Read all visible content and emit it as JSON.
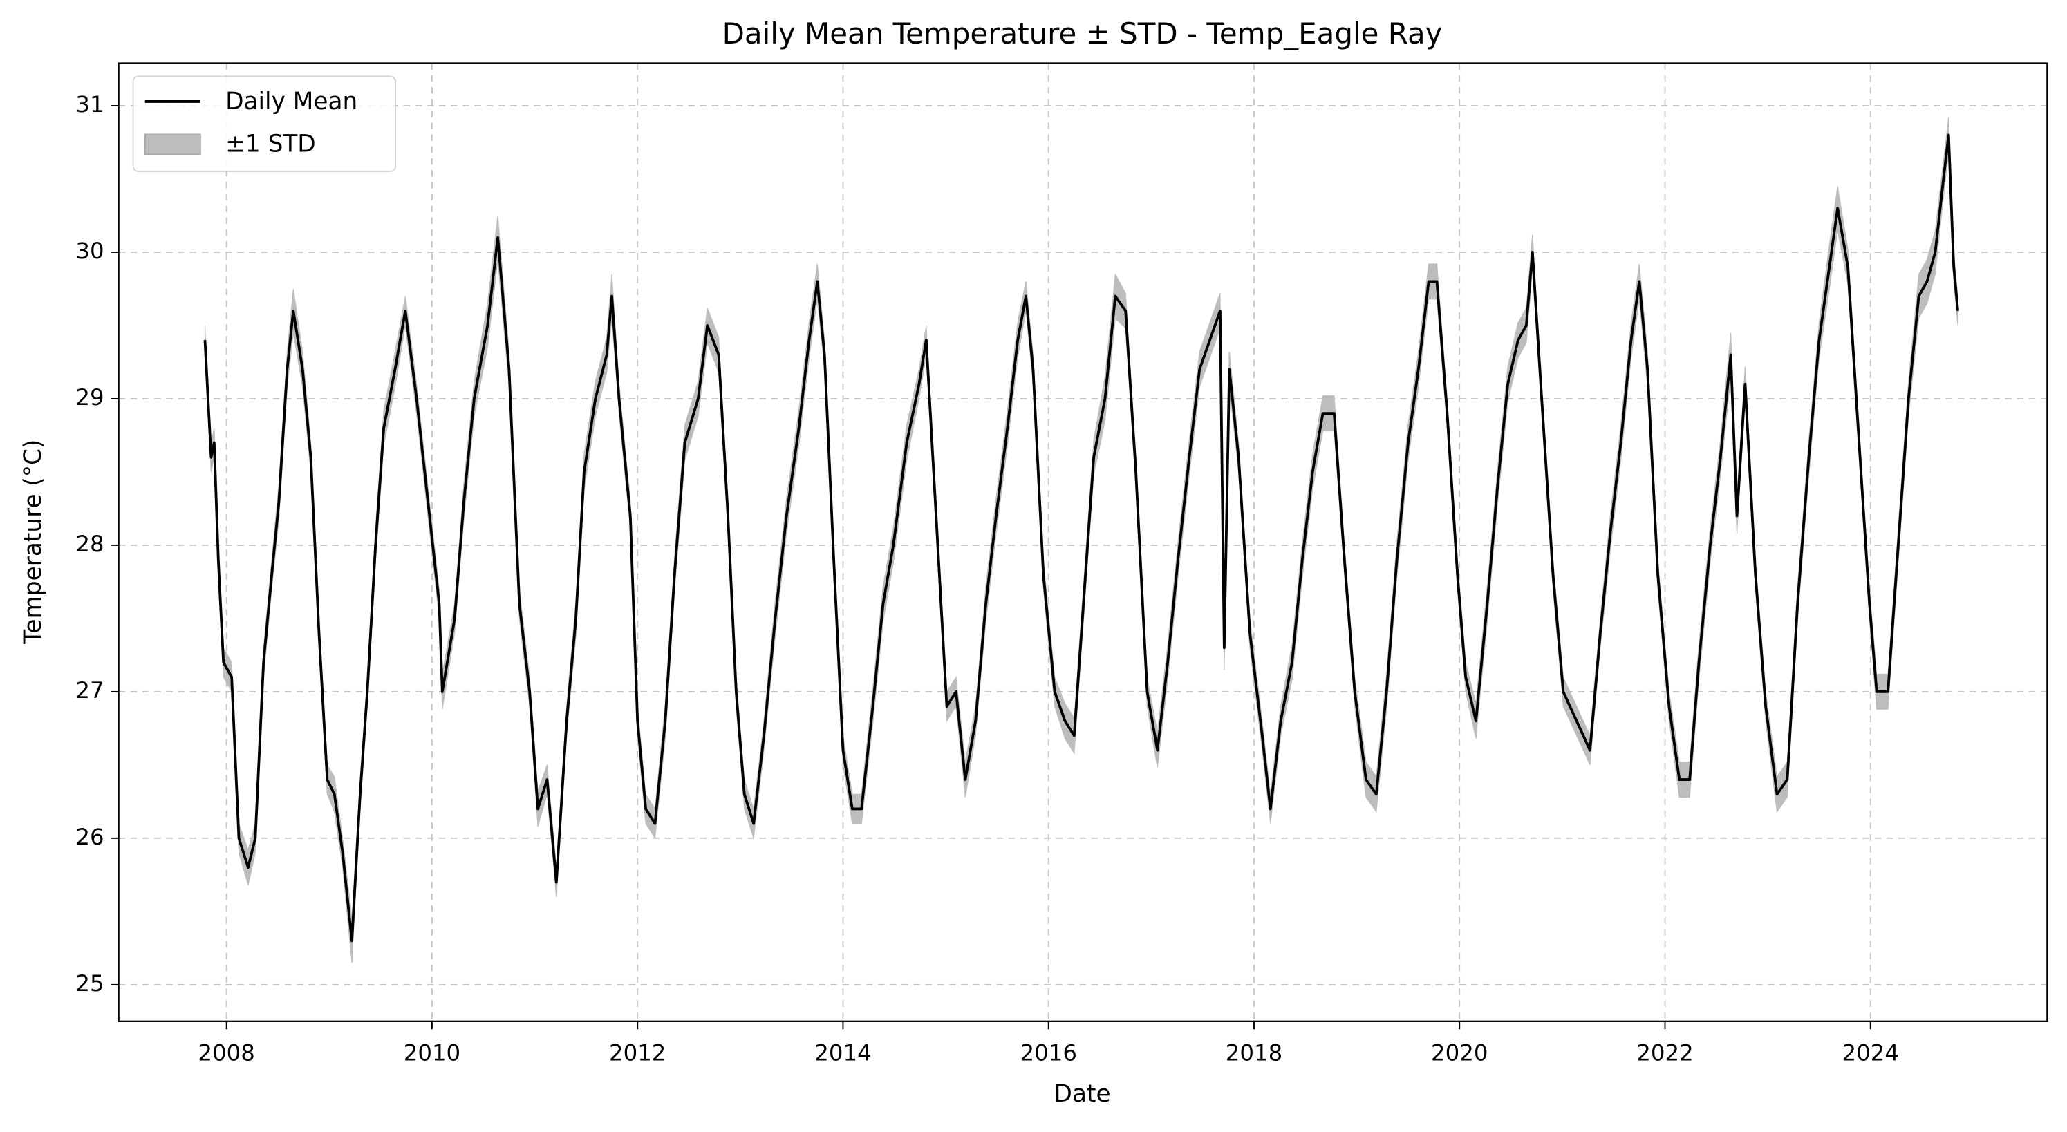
{
  "chart_data": {
    "type": "line",
    "title": "Daily Mean Temperature ± STD - Temp_Eagle Ray",
    "x_label": "Date",
    "y_label": "Temperature (°C)",
    "x": [
      2007.79,
      2007.85,
      2007.88,
      2007.92,
      2007.97,
      2008.05,
      2008.12,
      2008.21,
      2008.28,
      2008.36,
      2008.44,
      2008.51,
      2008.59,
      2008.65,
      2008.74,
      2008.82,
      2008.9,
      2008.98,
      2009.05,
      2009.13,
      2009.22,
      2009.3,
      2009.37,
      2009.45,
      2009.53,
      2009.64,
      2009.74,
      2009.85,
      2010.07,
      2010.1,
      2010.22,
      2010.31,
      2010.41,
      2010.54,
      2010.64,
      2010.75,
      2010.85,
      2010.95,
      2011.03,
      2011.12,
      2011.21,
      2011.31,
      2011.4,
      2011.48,
      2011.59,
      2011.7,
      2011.75,
      2011.82,
      2011.93,
      2012.0,
      2012.08,
      2012.17,
      2012.27,
      2012.36,
      2012.46,
      2012.59,
      2012.68,
      2012.79,
      2012.88,
      2012.96,
      2013.04,
      2013.13,
      2013.23,
      2013.34,
      2013.45,
      2013.57,
      2013.67,
      2013.75,
      2013.82,
      2013.91,
      2014.0,
      2014.09,
      2014.18,
      2014.29,
      2014.39,
      2014.49,
      2014.62,
      2014.74,
      2014.81,
      2014.93,
      2015.01,
      2015.1,
      2015.19,
      2015.29,
      2015.39,
      2015.49,
      2015.6,
      2015.7,
      2015.78,
      2015.85,
      2015.95,
      2016.06,
      2016.16,
      2016.25,
      2016.34,
      2016.44,
      2016.55,
      2016.65,
      2016.75,
      2016.85,
      2016.96,
      2017.06,
      2017.16,
      2017.26,
      2017.37,
      2017.47,
      2017.57,
      2017.67,
      2017.71,
      2017.76,
      2017.85,
      2017.96,
      2018.08,
      2018.16,
      2018.26,
      2018.37,
      2018.47,
      2018.57,
      2018.67,
      2018.78,
      2018.88,
      2018.98,
      2019.09,
      2019.19,
      2019.29,
      2019.39,
      2019.5,
      2019.6,
      2019.7,
      2019.78,
      2019.88,
      2019.98,
      2020.06,
      2020.16,
      2020.27,
      2020.37,
      2020.47,
      2020.57,
      2020.65,
      2020.71,
      2020.8,
      2020.91,
      2021.01,
      2021.27,
      2021.37,
      2021.47,
      2021.57,
      2021.67,
      2021.75,
      2021.83,
      2021.93,
      2022.04,
      2022.14,
      2022.24,
      2022.33,
      2022.44,
      2022.54,
      2022.64,
      2022.7,
      2022.78,
      2022.88,
      2022.98,
      2023.09,
      2023.19,
      2023.29,
      2023.4,
      2023.5,
      2023.6,
      2023.68,
      2023.78,
      2023.88,
      2023.99,
      2024.06,
      2024.17,
      2024.27,
      2024.37,
      2024.47,
      2024.55,
      2024.63,
      2024.71,
      2024.76,
      2024.81,
      2024.85
    ],
    "series": [
      {
        "name": "Daily Mean",
        "color": "#000000",
        "values": [
          29.4,
          28.6,
          28.7,
          27.9,
          27.2,
          27.1,
          26.0,
          25.8,
          26.0,
          27.2,
          27.8,
          28.3,
          29.2,
          29.6,
          29.2,
          28.6,
          27.4,
          26.4,
          26.3,
          25.9,
          25.3,
          26.3,
          27.0,
          28.0,
          28.8,
          29.2,
          29.6,
          29.0,
          27.6,
          27.0,
          27.5,
          28.3,
          29.0,
          29.5,
          30.1,
          29.2,
          27.6,
          27.0,
          26.2,
          26.4,
          25.7,
          26.8,
          27.5,
          28.5,
          29.0,
          29.3,
          29.7,
          29.0,
          28.2,
          26.8,
          26.2,
          26.1,
          26.8,
          27.8,
          28.7,
          29.0,
          29.5,
          29.3,
          28.2,
          27.0,
          26.3,
          26.1,
          26.7,
          27.5,
          28.2,
          28.8,
          29.4,
          29.8,
          29.3,
          27.9,
          26.6,
          26.2,
          26.2,
          26.9,
          27.6,
          28.0,
          28.7,
          29.1,
          29.4,
          27.9,
          26.9,
          27.0,
          26.4,
          26.8,
          27.6,
          28.2,
          28.8,
          29.4,
          29.7,
          29.2,
          27.8,
          27.0,
          26.8,
          26.7,
          27.6,
          28.6,
          29.0,
          29.7,
          29.6,
          28.5,
          27.0,
          26.6,
          27.2,
          27.9,
          28.6,
          29.2,
          29.4,
          29.6,
          27.3,
          29.2,
          28.6,
          27.4,
          26.7,
          26.2,
          26.8,
          27.2,
          27.9,
          28.5,
          28.9,
          28.9,
          27.9,
          27.0,
          26.4,
          26.3,
          27.0,
          27.9,
          28.7,
          29.2,
          29.8,
          29.8,
          28.9,
          27.8,
          27.1,
          26.8,
          27.6,
          28.4,
          29.1,
          29.4,
          29.5,
          30.0,
          29.0,
          27.8,
          27.0,
          26.6,
          27.4,
          28.1,
          28.7,
          29.4,
          29.8,
          29.2,
          27.8,
          26.9,
          26.4,
          26.4,
          27.2,
          28.0,
          28.6,
          29.3,
          28.2,
          29.1,
          27.8,
          26.9,
          26.3,
          26.4,
          27.6,
          28.6,
          29.4,
          29.9,
          30.3,
          29.9,
          28.8,
          27.6,
          27.0,
          27.0,
          28.0,
          29.0,
          29.7,
          29.8,
          30.0,
          30.5,
          30.8,
          29.9,
          29.6
        ]
      },
      {
        "name": "±1 STD",
        "color": "#bdbdbd",
        "values": [
          0.1,
          0.1,
          0.1,
          0.1,
          0.1,
          0.1,
          0.1,
          0.12,
          0.1,
          0.1,
          0.1,
          0.12,
          0.12,
          0.15,
          0.12,
          0.1,
          0.1,
          0.1,
          0.12,
          0.1,
          0.15,
          0.1,
          0.1,
          0.12,
          0.12,
          0.12,
          0.1,
          0.1,
          0.1,
          0.12,
          0.1,
          0.12,
          0.12,
          0.15,
          0.15,
          0.12,
          0.1,
          0.1,
          0.12,
          0.1,
          0.1,
          0.1,
          0.12,
          0.12,
          0.12,
          0.12,
          0.15,
          0.1,
          0.1,
          0.1,
          0.1,
          0.1,
          0.12,
          0.12,
          0.12,
          0.12,
          0.12,
          0.12,
          0.1,
          0.1,
          0.1,
          0.1,
          0.1,
          0.12,
          0.12,
          0.12,
          0.12,
          0.12,
          0.1,
          0.1,
          0.1,
          0.1,
          0.1,
          0.12,
          0.12,
          0.12,
          0.12,
          0.1,
          0.1,
          0.1,
          0.1,
          0.1,
          0.12,
          0.1,
          0.12,
          0.12,
          0.12,
          0.12,
          0.1,
          0.1,
          0.1,
          0.1,
          0.12,
          0.12,
          0.12,
          0.12,
          0.15,
          0.15,
          0.12,
          0.1,
          0.1,
          0.12,
          0.12,
          0.12,
          0.12,
          0.12,
          0.12,
          0.12,
          0.15,
          0.12,
          0.1,
          0.1,
          0.1,
          0.1,
          0.1,
          0.12,
          0.12,
          0.12,
          0.12,
          0.12,
          0.1,
          0.1,
          0.12,
          0.12,
          0.12,
          0.12,
          0.12,
          0.12,
          0.12,
          0.12,
          0.1,
          0.1,
          0.1,
          0.12,
          0.12,
          0.12,
          0.12,
          0.12,
          0.12,
          0.12,
          0.1,
          0.1,
          0.1,
          0.1,
          0.1,
          0.12,
          0.12,
          0.12,
          0.12,
          0.12,
          0.1,
          0.1,
          0.12,
          0.12,
          0.12,
          0.12,
          0.12,
          0.15,
          0.12,
          0.12,
          0.1,
          0.1,
          0.12,
          0.12,
          0.12,
          0.12,
          0.12,
          0.15,
          0.15,
          0.12,
          0.1,
          0.1,
          0.12,
          0.12,
          0.12,
          0.12,
          0.15,
          0.15,
          0.15,
          0.12,
          0.12,
          0.1,
          0.1
        ]
      }
    ],
    "xlim": [
      2006.95,
      2025.72
    ],
    "ylim": [
      24.75,
      31.29
    ],
    "xticks": [
      2008,
      2010,
      2012,
      2014,
      2016,
      2018,
      2020,
      2022,
      2024
    ],
    "yticks": [
      25,
      26,
      27,
      28,
      29,
      30,
      31
    ],
    "grid": true,
    "legend": "upper left"
  }
}
